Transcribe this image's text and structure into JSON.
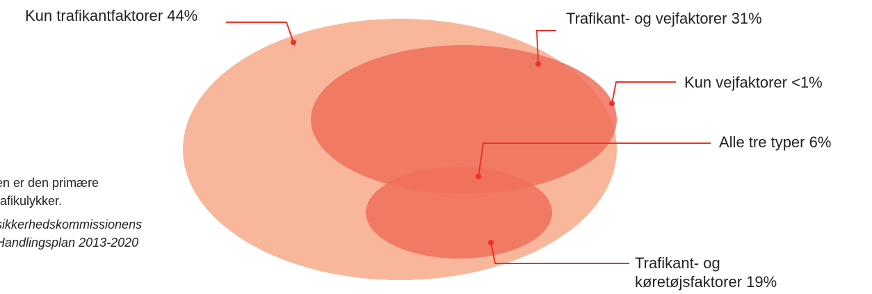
{
  "labels": {
    "traffic_only": "Kun trafikantfaktorer  44%",
    "traffic_road": "Trafikant- og vejfaktorer 31%",
    "road_only": "Kun vejfaktorer <1%",
    "all_three": "Alle tre typer 6%",
    "traffic_vehicle_line1": "Trafikant- og",
    "traffic_vehicle_line2": "køretøjsfaktorer 19%"
  },
  "side_text": {
    "line1": "en er den primære",
    "line2": "rafikulykker.",
    "source_line1": "sikkerhedskommissionens",
    "source_line2": "Handlingsplan 2013-2020"
  },
  "colors": {
    "outer_ellipse": "#f8b69a",
    "inner_ellipse": "#f0705a",
    "overlap": "#ee5a3e",
    "leader_line": "#e8332a"
  }
}
